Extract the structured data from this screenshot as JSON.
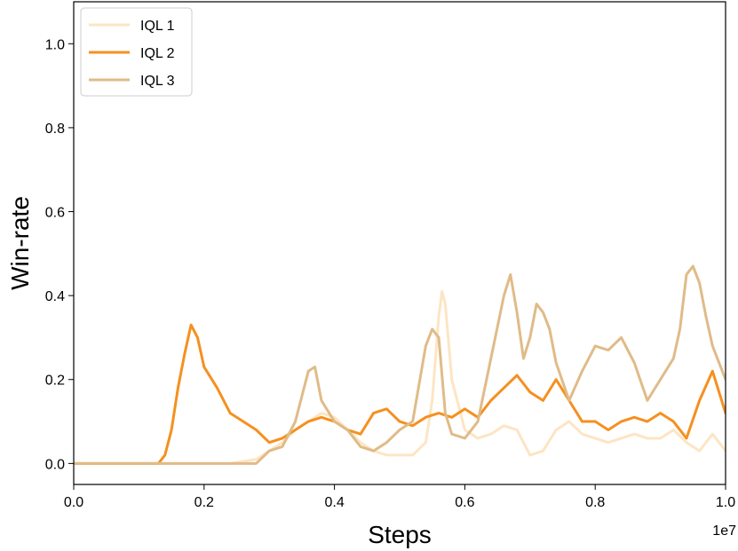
{
  "chart_data": {
    "type": "line",
    "title": "",
    "xlabel": "Steps",
    "ylabel": "Win-rate",
    "x_offset_label": "1e7",
    "xlim": [
      0.0,
      1.0
    ],
    "ylim": [
      -0.05,
      1.1
    ],
    "x_ticks": [
      0.0,
      0.2,
      0.4,
      0.6,
      0.8,
      1.0
    ],
    "x_tick_labels": [
      "0.0",
      "0.2",
      "0.4",
      "0.6",
      "0.8",
      "1.0"
    ],
    "y_ticks": [
      0.0,
      0.2,
      0.4,
      0.6,
      0.8,
      1.0
    ],
    "y_tick_labels": [
      "0.0",
      "0.2",
      "0.4",
      "0.6",
      "0.8",
      "1.0"
    ],
    "grid": false,
    "legend_position": "top-left",
    "series": [
      {
        "name": "IQL 1",
        "color": "#fde5c4",
        "x": [
          0.0,
          0.2,
          0.24,
          0.26,
          0.28,
          0.3,
          0.32,
          0.34,
          0.36,
          0.38,
          0.4,
          0.42,
          0.44,
          0.46,
          0.48,
          0.5,
          0.52,
          0.54,
          0.55,
          0.56,
          0.565,
          0.57,
          0.58,
          0.6,
          0.62,
          0.64,
          0.66,
          0.68,
          0.7,
          0.72,
          0.74,
          0.76,
          0.78,
          0.8,
          0.82,
          0.84,
          0.86,
          0.88,
          0.9,
          0.92,
          0.94,
          0.96,
          0.98,
          1.0
        ],
        "y": [
          0.0,
          0.0,
          0.0,
          0.005,
          0.01,
          0.03,
          0.05,
          0.08,
          0.1,
          0.12,
          0.11,
          0.08,
          0.05,
          0.03,
          0.02,
          0.02,
          0.02,
          0.05,
          0.15,
          0.35,
          0.41,
          0.38,
          0.2,
          0.08,
          0.06,
          0.07,
          0.09,
          0.08,
          0.02,
          0.03,
          0.08,
          0.1,
          0.07,
          0.06,
          0.05,
          0.06,
          0.07,
          0.06,
          0.06,
          0.08,
          0.05,
          0.03,
          0.07,
          0.03
        ]
      },
      {
        "name": "IQL 2",
        "color": "#f5901f",
        "x": [
          0.0,
          0.13,
          0.14,
          0.15,
          0.16,
          0.17,
          0.18,
          0.19,
          0.2,
          0.22,
          0.24,
          0.26,
          0.28,
          0.3,
          0.32,
          0.34,
          0.36,
          0.38,
          0.4,
          0.42,
          0.44,
          0.46,
          0.48,
          0.5,
          0.52,
          0.54,
          0.56,
          0.58,
          0.6,
          0.62,
          0.64,
          0.66,
          0.68,
          0.7,
          0.72,
          0.74,
          0.76,
          0.78,
          0.8,
          0.82,
          0.84,
          0.86,
          0.88,
          0.9,
          0.92,
          0.94,
          0.96,
          0.98,
          1.0
        ],
        "y": [
          0.0,
          0.0,
          0.02,
          0.08,
          0.18,
          0.26,
          0.33,
          0.3,
          0.23,
          0.18,
          0.12,
          0.1,
          0.08,
          0.05,
          0.06,
          0.08,
          0.1,
          0.11,
          0.1,
          0.08,
          0.07,
          0.12,
          0.13,
          0.1,
          0.09,
          0.11,
          0.12,
          0.11,
          0.13,
          0.11,
          0.15,
          0.18,
          0.21,
          0.17,
          0.15,
          0.2,
          0.15,
          0.1,
          0.1,
          0.08,
          0.1,
          0.11,
          0.1,
          0.12,
          0.1,
          0.06,
          0.15,
          0.22,
          0.12
        ]
      },
      {
        "name": "IQL 3",
        "color": "#e0bb88",
        "x": [
          0.0,
          0.28,
          0.3,
          0.32,
          0.34,
          0.35,
          0.36,
          0.37,
          0.38,
          0.4,
          0.42,
          0.44,
          0.46,
          0.48,
          0.5,
          0.52,
          0.54,
          0.55,
          0.56,
          0.57,
          0.58,
          0.6,
          0.62,
          0.64,
          0.66,
          0.67,
          0.68,
          0.69,
          0.7,
          0.71,
          0.72,
          0.73,
          0.74,
          0.76,
          0.78,
          0.8,
          0.82,
          0.84,
          0.86,
          0.88,
          0.9,
          0.92,
          0.93,
          0.94,
          0.95,
          0.96,
          0.97,
          0.98,
          1.0
        ],
        "y": [
          0.0,
          0.0,
          0.03,
          0.04,
          0.1,
          0.16,
          0.22,
          0.23,
          0.15,
          0.1,
          0.08,
          0.04,
          0.03,
          0.05,
          0.08,
          0.1,
          0.28,
          0.32,
          0.3,
          0.12,
          0.07,
          0.06,
          0.1,
          0.25,
          0.4,
          0.45,
          0.36,
          0.25,
          0.3,
          0.38,
          0.36,
          0.32,
          0.24,
          0.15,
          0.22,
          0.28,
          0.27,
          0.3,
          0.24,
          0.15,
          0.2,
          0.25,
          0.32,
          0.45,
          0.47,
          0.43,
          0.35,
          0.28,
          0.2
        ]
      }
    ]
  }
}
